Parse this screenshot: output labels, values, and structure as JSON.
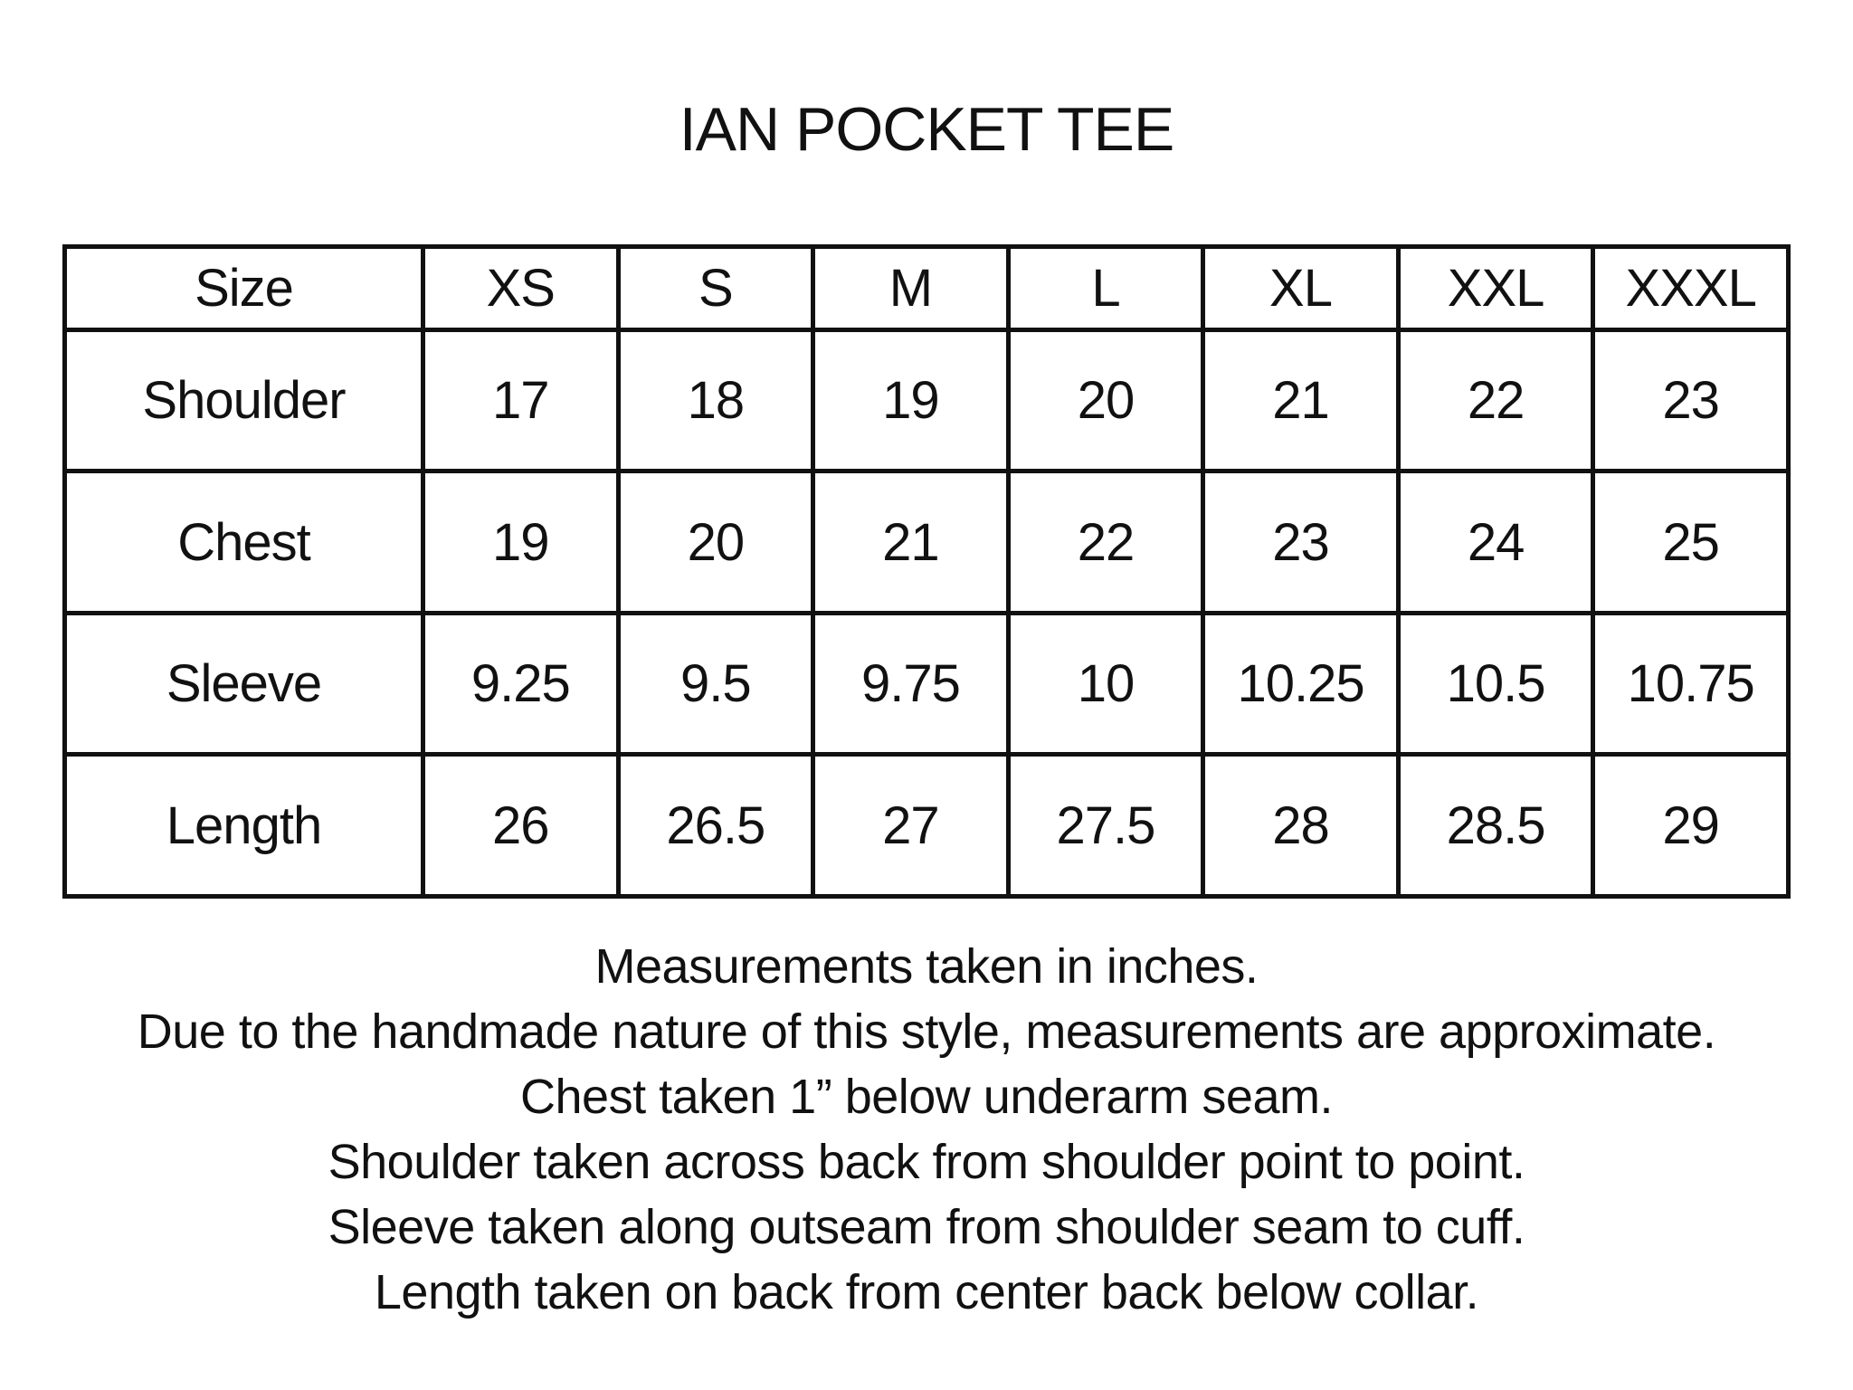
{
  "title": "IAN POCKET TEE",
  "table": {
    "header": [
      "Size",
      "XS",
      "S",
      "M",
      "L",
      "XL",
      "XXL",
      "XXXL"
    ],
    "rows": [
      [
        "Shoulder",
        "17",
        "18",
        "19",
        "20",
        "21",
        "22",
        "23"
      ],
      [
        "Chest",
        "19",
        "20",
        "21",
        "22",
        "23",
        "24",
        "25"
      ],
      [
        "Sleeve",
        "9.25",
        "9.5",
        "9.75",
        "10",
        "10.25",
        "10.5",
        "10.75"
      ],
      [
        "Length",
        "26",
        "26.5",
        "27",
        "27.5",
        "28",
        "28.5",
        "29"
      ]
    ]
  },
  "notes": [
    "Measurements taken in inches.",
    "Due to the handmade nature of this style, measurements are approximate.",
    "Chest taken 1” below underarm seam.",
    "Shoulder taken across back from shoulder point to point.",
    "Sleeve taken along outseam from shoulder seam to cuff.",
    "Length taken on back from center back below collar."
  ]
}
